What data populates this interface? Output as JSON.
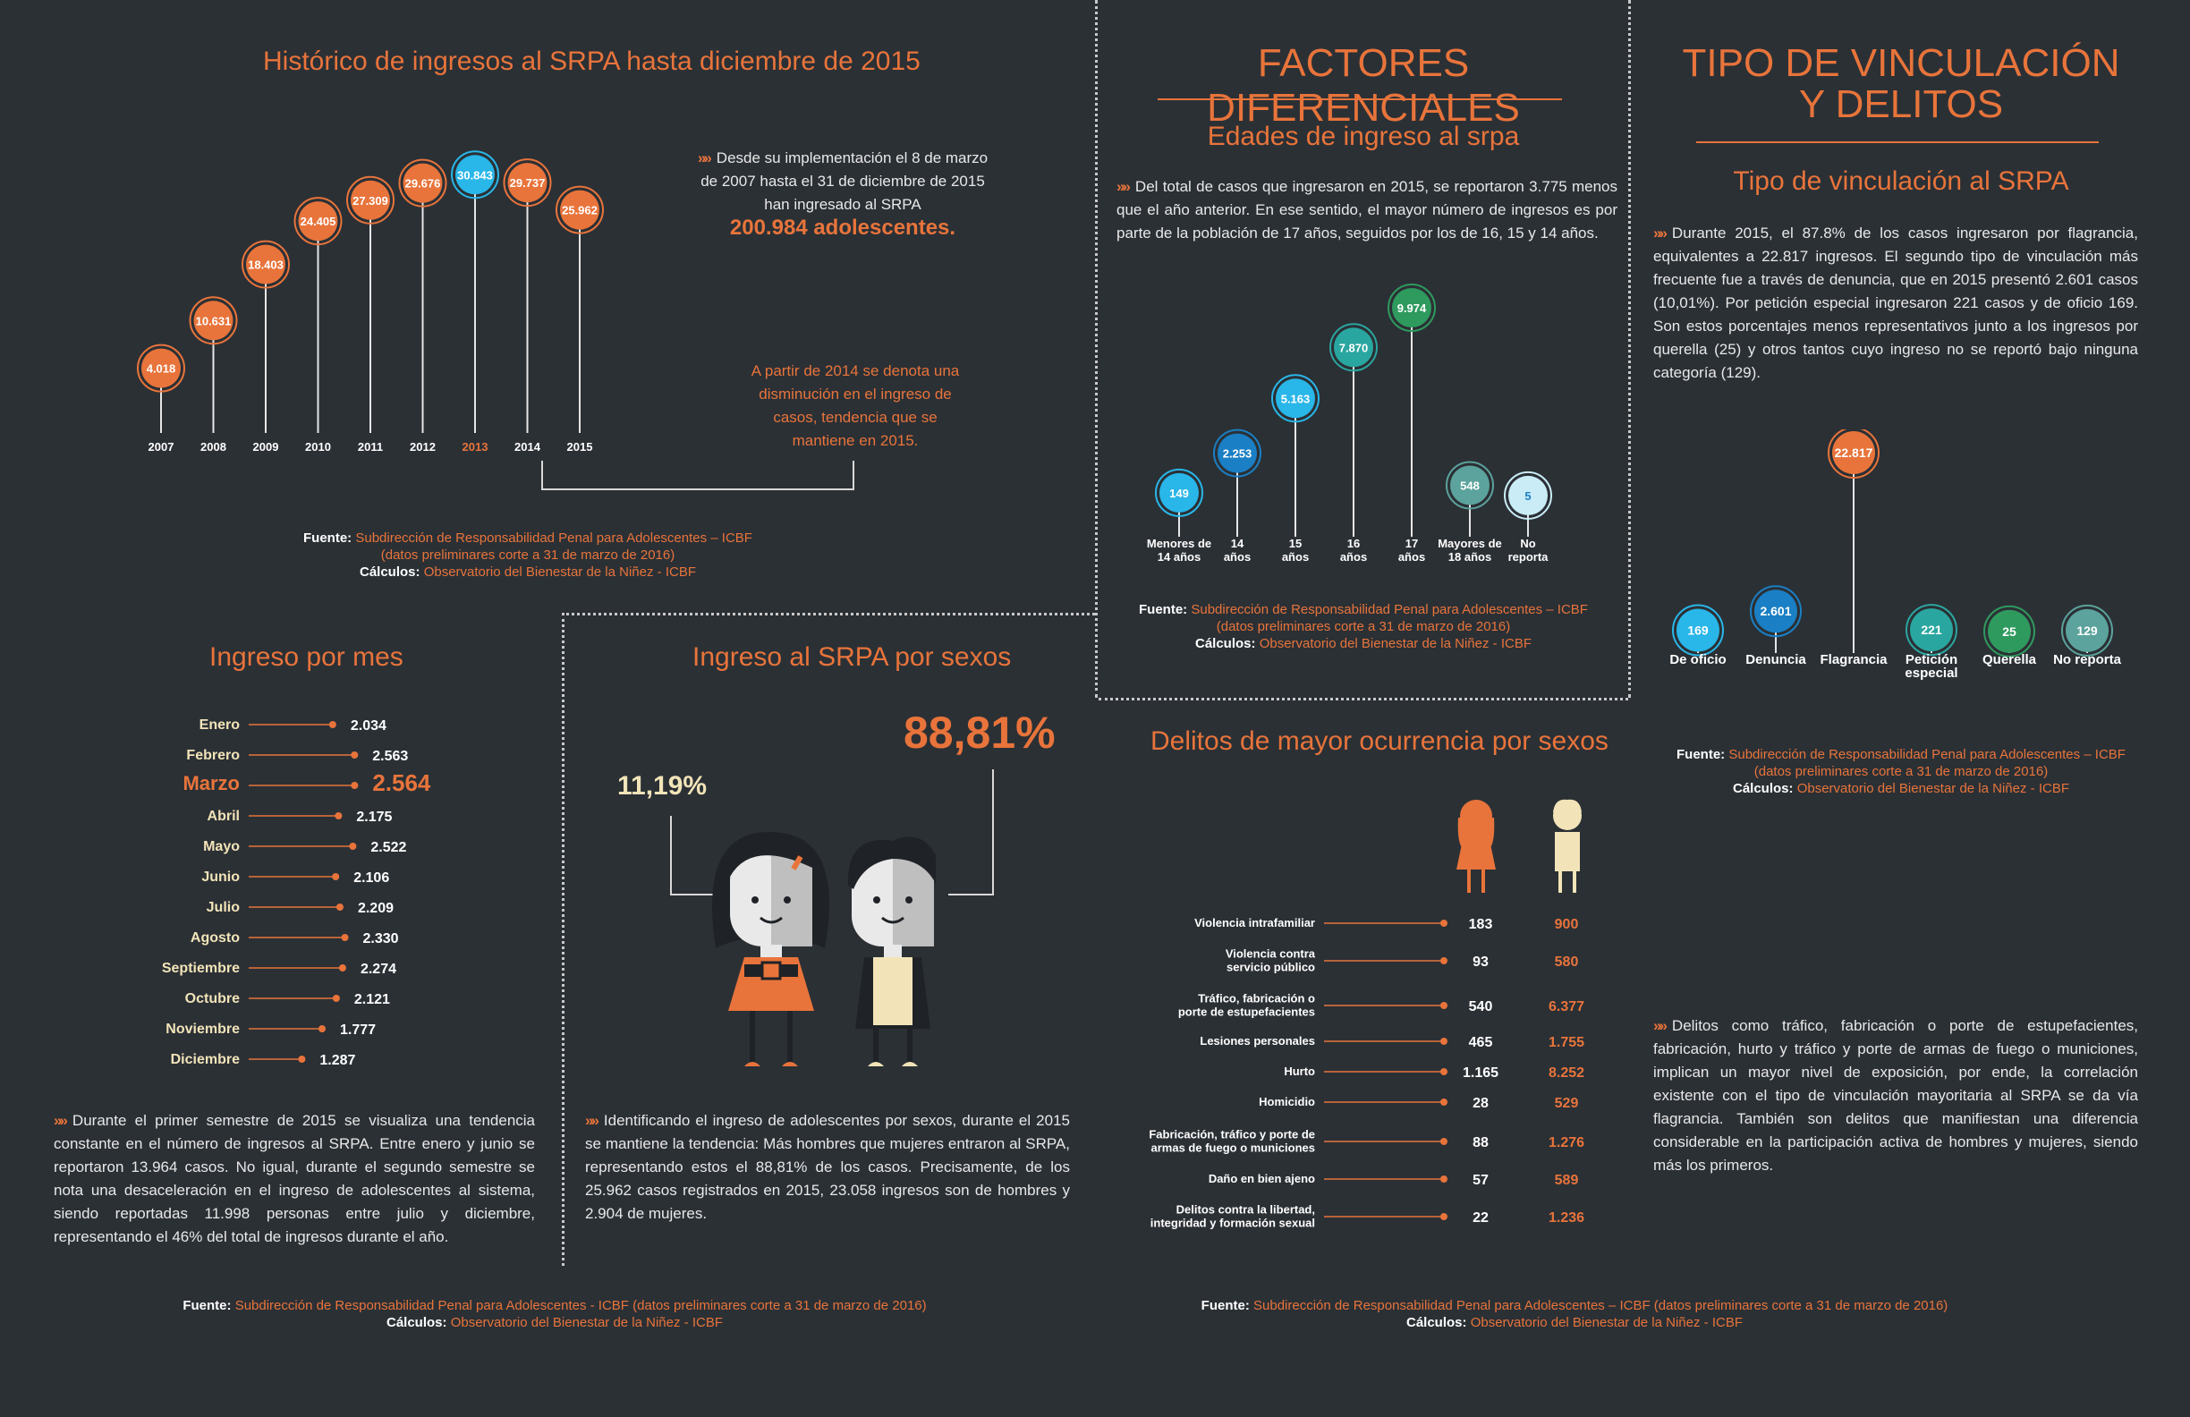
{
  "historico": {
    "title": "Histórico de ingresos al SRPA hasta diciembre de 2015",
    "intro": "Desde su implementación el 8 de marzo de 2007 hasta el 31 de diciembre de 2015 han ingresado al SRPA",
    "total": "200.984 adolescentes.",
    "note": "A partir de 2014 se denota una disminución en el ingreso de casos, tendencia que se mantiene en 2015.",
    "highlight_year": "2013"
  },
  "source_block_1": {
    "fuente_label": "Fuente:",
    "fuente": "Subdirección de Responsabilidad Penal para Adolescentes – ICBF",
    "fuente2": "(datos preliminares corte a 31 de marzo de 2016)",
    "calculos_label": "Cálculos:",
    "calculos": "Observatorio del Bienestar de la Niñez - ICBF"
  },
  "factores": {
    "title": "FACTORES DIFERENCIALES",
    "subtitle": "Edades de ingreso al srpa",
    "text": "Del total de casos que ingresaron en 2015, se reportaron 3.775 menos que el año anterior. En ese sentido, el mayor número de ingresos es por parte de la población de 17 años, seguidos por los de 16, 15 y 14 años."
  },
  "source_block_2": {
    "fuente_label": "Fuente:",
    "fuente": "Subdirección de Responsabilidad Penal para Adolescentes – ICBF",
    "fuente2": "(datos preliminares corte a 31 de marzo de 2016)",
    "calculos_label": "Cálculos:",
    "calculos": "Observatorio del Bienestar de la Niñez - ICBF"
  },
  "tipo": {
    "title_line1": "TIPO DE VINCULACIÓN",
    "title_line2": "Y DELITOS",
    "subtitle": "Tipo de vinculación al SRPA",
    "text": "Durante 2015, el 87.8% de los casos ingresaron por flagrancia, equivalentes a 22.817 ingresos. El segundo tipo de vinculación más frecuente fue a través de denuncia, que en 2015 presentó 2.601 casos (10,01%). Por petición especial ingresaron 221 casos y de oficio 169. Son estos porcentajes menos representativos junto a los ingresos por querella (25) y otros tantos cuyo ingreso no se reportó bajo ninguna categoría (129).",
    "text2": "Delitos como tráfico, fabricación o porte de estupefacientes, fabricación, hurto y tráfico y porte de armas de fuego o municiones, implican un mayor nivel de exposición, por ende, la correlación existente con el tipo de vinculación mayoritaria al SRPA se da vía flagrancia. También son delitos que manifiestan una diferencia considerable en la participación activa de hombres y mujeres, siendo más los primeros."
  },
  "source_block_3": {
    "fuente_label": "Fuente:",
    "fuente": "Subdirección de Responsabilidad Penal para Adolescentes – ICBF",
    "fuente2": "(datos preliminares corte a 31 de marzo de 2016)",
    "calculos_label": "Cálculos:",
    "calculos": "Observatorio del Bienestar de la Niñez - ICBF"
  },
  "mes": {
    "title": "Ingreso por mes",
    "highlight": "Marzo",
    "text": "Durante el primer semestre de 2015 se visualiza una tendencia constante en el número de ingresos al SRPA. Entre enero y junio se reportaron 13.964 casos. No igual, durante el segundo semestre se nota una desaceleración en el ingreso de adolescentes al sistema, siendo reportadas 11.998 personas entre julio y diciembre, representando el 46% del total de ingresos durante el año."
  },
  "sexos": {
    "title": "Ingreso al SRPA por sexos",
    "pct_mujeres": "11,19%",
    "pct_hombres": "88,81%",
    "text": "Identificando el ingreso de adolescentes por sexos, durante el 2015 se mantiene la tendencia: Más hombres que mujeres entraron al SRPA, representando estos el 88,81% de los casos. Precisamente, de los 25.962 casos registrados en 2015, 23.058 ingresos son de hombres y 2.904 de mujeres."
  },
  "delitos": {
    "title": "Delitos de mayor ocurrencia por sexos"
  },
  "footer_left": {
    "fuente_label": "Fuente:",
    "fuente": "Subdirección de Responsabilidad Penal para Adolescentes - ICBF (datos preliminares corte a 31 de marzo de 2016)",
    "calculos_label": "Cálculos:",
    "calculos": "Observatorio del Bienestar de la Niñez - ICBF"
  },
  "footer_right": {
    "fuente_label": "Fuente:",
    "fuente": "Subdirección de Responsabilidad Penal para Adolescentes – ICBF (datos preliminares corte a 31 de marzo de 2016)",
    "calculos_label": "Cálculos:",
    "calculos": "Observatorio del Bienestar de la Niñez - ICBF"
  },
  "colors": {
    "background": "#2b3035",
    "orange": "#e8743b",
    "cream": "#f2e4b8",
    "cyan": "#29b6e8",
    "blue": "#1a7fc4",
    "teal": "#2aa6a0",
    "green": "#2f9a5e",
    "grayteal": "#5ba39c",
    "lightcyan": "#c9ecf7"
  },
  "chart_data": [
    {
      "type": "line",
      "title": "Histórico de ingresos al SRPA hasta diciembre de 2015",
      "categories": [
        "2007",
        "2008",
        "2009",
        "2010",
        "2011",
        "2012",
        "2013",
        "2014",
        "2015"
      ],
      "labels": [
        "4.018",
        "10.631",
        "18.403",
        "24.405",
        "27.309",
        "29.676",
        "30.843",
        "29.737",
        "25.962"
      ],
      "values": [
        4018,
        10631,
        18403,
        24405,
        27309,
        29676,
        30843,
        29737,
        25962
      ]
    },
    {
      "type": "bar",
      "title": "Edades de ingreso al srpa",
      "categories": [
        "Menores de 14 años",
        "14 años",
        "15 años",
        "16 años",
        "17 años",
        "Mayores de 18 años",
        "No reporta"
      ],
      "cat_lines": [
        [
          "Menores de",
          "14 años"
        ],
        [
          "14",
          "años"
        ],
        [
          "15",
          "años"
        ],
        [
          "16",
          "años"
        ],
        [
          "17",
          "años"
        ],
        [
          "Mayores de",
          "18 años"
        ],
        [
          "No",
          "reporta"
        ]
      ],
      "labels": [
        "149",
        "2.253",
        "5.163",
        "7.870",
        "9.974",
        "548",
        "5"
      ],
      "values": [
        149,
        2253,
        5163,
        7870,
        9974,
        548,
        5
      ],
      "colors": [
        "#29b6e8",
        "#1a7fc4",
        "#29b6e8",
        "#2aa6a0",
        "#2f9a5e",
        "#5ba39c",
        "#c9ecf7"
      ]
    },
    {
      "type": "bar",
      "title": "Tipo de vinculación al SRPA",
      "categories": [
        "De oficio",
        "Denuncia",
        "Flagrancia",
        "Petición especial",
        "Querella",
        "No reporta"
      ],
      "cat_lines": [
        [
          "De oficio"
        ],
        [
          "Denuncia"
        ],
        [
          "Flagrancia"
        ],
        [
          "Petición",
          "especial"
        ],
        [
          "Querella"
        ],
        [
          "No reporta"
        ]
      ],
      "labels": [
        "169",
        "2.601",
        "22.817",
        "221",
        "25",
        "129"
      ],
      "values": [
        169,
        2601,
        22817,
        221,
        25,
        129
      ],
      "colors": [
        "#29b6e8",
        "#1a7fc4",
        "#e8743b",
        "#2aa6a0",
        "#2f9a5e",
        "#5ba39c"
      ]
    },
    {
      "type": "bar",
      "title": "Ingreso por mes",
      "categories": [
        "Enero",
        "Febrero",
        "Marzo",
        "Abril",
        "Mayo",
        "Junio",
        "Julio",
        "Agosto",
        "Septiembre",
        "Octubre",
        "Noviembre",
        "Diciembre"
      ],
      "labels": [
        "2.034",
        "2.563",
        "2.564",
        "2.175",
        "2.522",
        "2.106",
        "2.209",
        "2.330",
        "2.274",
        "2.121",
        "1.777",
        "1.287"
      ],
      "values": [
        2034,
        2563,
        2564,
        2175,
        2522,
        2106,
        2209,
        2330,
        2274,
        2121,
        1777,
        1287
      ]
    },
    {
      "type": "table",
      "title": "Delitos de mayor ocurrencia por sexos",
      "rows": [
        {
          "lines": [
            "Violencia intrafamiliar"
          ],
          "mujeres": "183",
          "hombres": "900"
        },
        {
          "lines": [
            "Violencia contra",
            "servicio público"
          ],
          "mujeres": "93",
          "hombres": "580"
        },
        {
          "lines": [
            "Tráfico, fabricación o",
            "porte de estupefacientes"
          ],
          "mujeres": "540",
          "hombres": "6.377"
        },
        {
          "lines": [
            "Lesiones personales"
          ],
          "mujeres": "465",
          "hombres": "1.755"
        },
        {
          "lines": [
            "Hurto"
          ],
          "mujeres": "1.165",
          "hombres": "8.252"
        },
        {
          "lines": [
            "Homicidio"
          ],
          "mujeres": "28",
          "hombres": "529"
        },
        {
          "lines": [
            "Fabricación, tráfico y porte de",
            "armas de fuego o municiones"
          ],
          "mujeres": "88",
          "hombres": "1.276"
        },
        {
          "lines": [
            "Daño en bien ajeno"
          ],
          "mujeres": "57",
          "hombres": "589"
        },
        {
          "lines": [
            "Delitos contra la libertad,",
            "integridad y formación sexual"
          ],
          "mujeres": "22",
          "hombres": "1.236"
        }
      ]
    }
  ]
}
